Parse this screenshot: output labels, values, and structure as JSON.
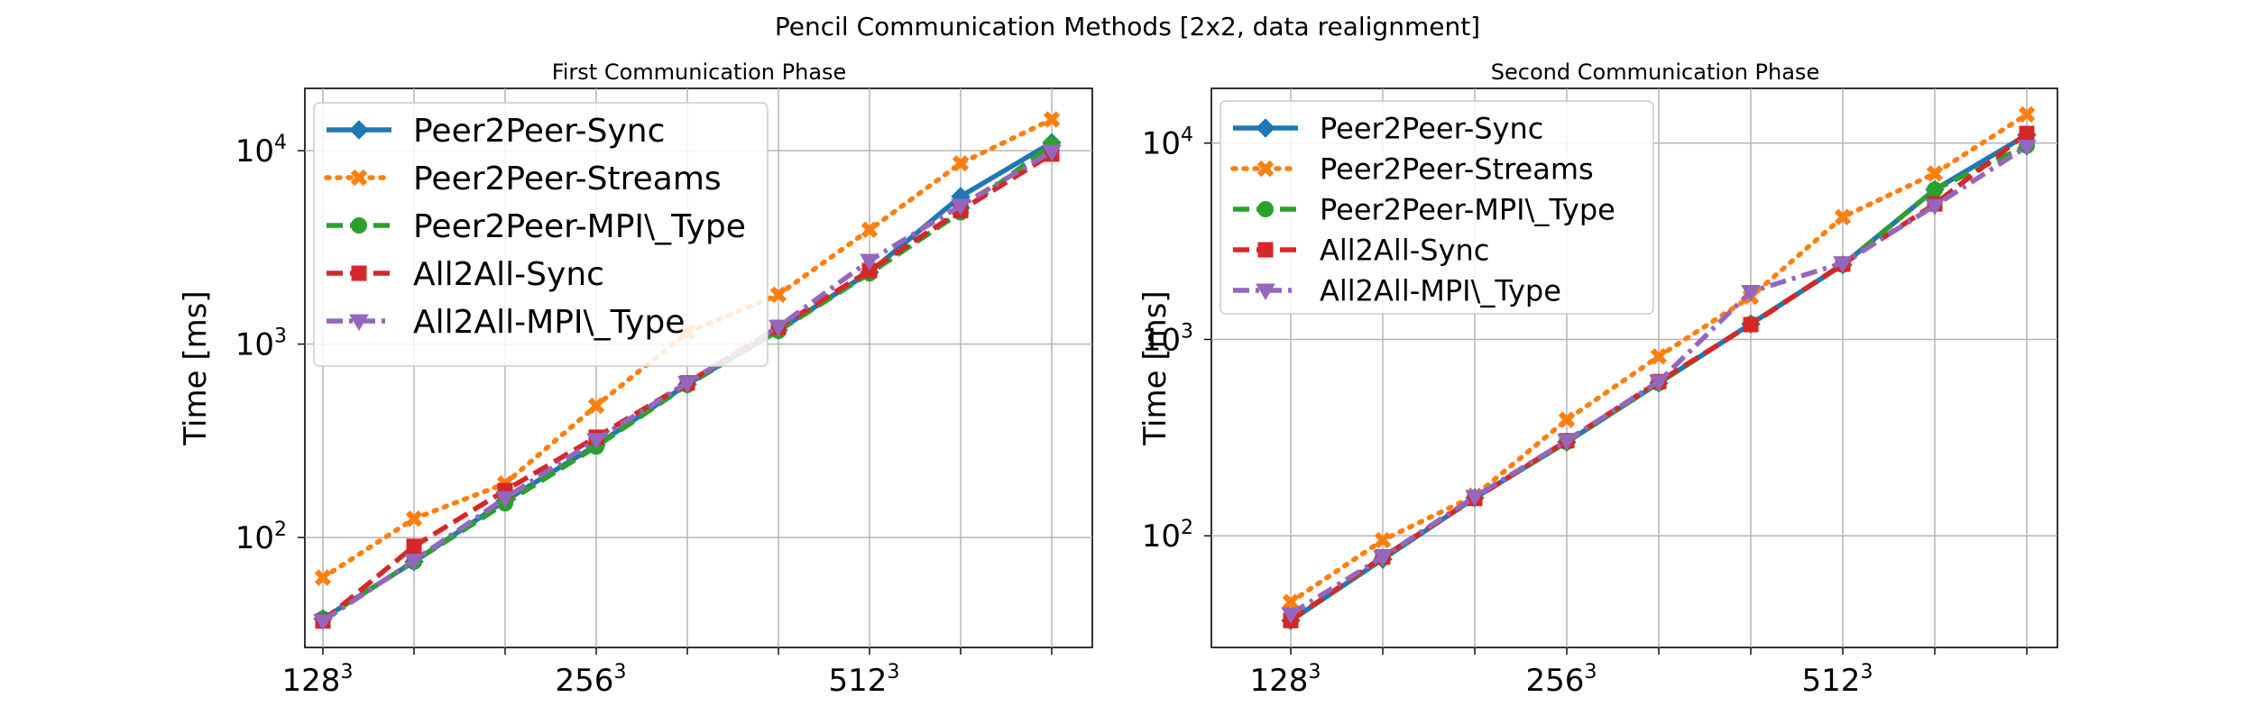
{
  "figure_title": "Pencil Communication Methods [2x2, data realignment]",
  "styles": {
    "Peer2Peer-Sync": {
      "color": "#1f77b4",
      "dash": "",
      "marker": "diamond"
    },
    "Peer2Peer-Streams": {
      "color": "#ff7f0e",
      "dash": "dot",
      "marker": "x"
    },
    "Peer2Peer-MPI\\_Type": {
      "color": "#2ca02c",
      "dash": "dash",
      "marker": "circle"
    },
    "All2All-Sync": {
      "color": "#d62728",
      "dash": "dash",
      "marker": "square"
    },
    "All2All-MPI\\_Type": {
      "color": "#9467bd",
      "dash": "dashdot",
      "marker": "triangle-down"
    }
  },
  "chart_data": [
    {
      "type": "line",
      "title": "First Communication Phase",
      "xlabel": "",
      "ylabel": "Time [ms]",
      "y_scale": "log",
      "ylim": [
        27,
        21000
      ],
      "x_tick_labels": [
        {
          "base": "128",
          "exp": "3",
          "index": 0
        },
        {
          "base": "256",
          "exp": "3",
          "index": 3
        },
        {
          "base": "512",
          "exp": "3",
          "index": 6
        }
      ],
      "y_tick_labels": [
        {
          "base": "10",
          "exp": "2",
          "value": 100
        },
        {
          "base": "10",
          "exp": "3",
          "value": 1000
        },
        {
          "base": "10",
          "exp": "4",
          "value": 10000
        }
      ],
      "grid": true,
      "legend_position": "top-left",
      "series": [
        {
          "name": "Peer2Peer-Sync",
          "values": [
            38,
            75,
            155,
            300,
            620,
            1180,
            2350,
            5800,
            11000
          ]
        },
        {
          "name": "Peer2Peer-Streams",
          "values": [
            62,
            125,
            190,
            480,
            1150,
            1800,
            3900,
            8600,
            14500
          ]
        },
        {
          "name": "Peer2Peer-MPI\\_Type",
          "values": [
            38,
            75,
            150,
            295,
            615,
            1170,
            2320,
            4800,
            10800
          ]
        },
        {
          "name": "All2All-Sync",
          "values": [
            37,
            90,
            175,
            330,
            630,
            1220,
            2400,
            4900,
            9600
          ]
        },
        {
          "name": "All2All-MPI\\_Type",
          "values": [
            37,
            76,
            160,
            320,
            630,
            1230,
            2700,
            5200,
            9900
          ]
        }
      ]
    },
    {
      "type": "line",
      "title": "Second Communication Phase",
      "xlabel": "",
      "ylabel": "Time [ms]",
      "y_scale": "log",
      "ylim": [
        27,
        19000
      ],
      "x_tick_labels": [
        {
          "base": "128",
          "exp": "3",
          "index": 0
        },
        {
          "base": "256",
          "exp": "3",
          "index": 3
        },
        {
          "base": "512",
          "exp": "3",
          "index": 6
        }
      ],
      "y_tick_labels": [
        {
          "base": "10",
          "exp": "2",
          "value": 100
        },
        {
          "base": "10",
          "exp": "3",
          "value": 1000
        },
        {
          "base": "10",
          "exp": "4",
          "value": 10000
        }
      ],
      "grid": true,
      "legend_position": "top-left",
      "series": [
        {
          "name": "Peer2Peer-Sync",
          "values": [
            37,
            76,
            156,
            300,
            600,
            1200,
            2400,
            5800,
            11000
          ]
        },
        {
          "name": "Peer2Peer-Streams",
          "values": [
            46,
            95,
            160,
            390,
            820,
            1650,
            4200,
            7000,
            14000
          ]
        },
        {
          "name": "Peer2Peer-MPI\\_Type",
          "values": [
            37,
            77,
            156,
            300,
            600,
            1200,
            2400,
            5800,
            9700
          ]
        },
        {
          "name": "All2All-Sync",
          "values": [
            37,
            78,
            155,
            305,
            610,
            1190,
            2420,
            4900,
            11200
          ]
        },
        {
          "name": "All2All-MPI\\_Type",
          "values": [
            40,
            78,
            158,
            305,
            610,
            1750,
            2450,
            4800,
            9600
          ]
        }
      ]
    }
  ]
}
